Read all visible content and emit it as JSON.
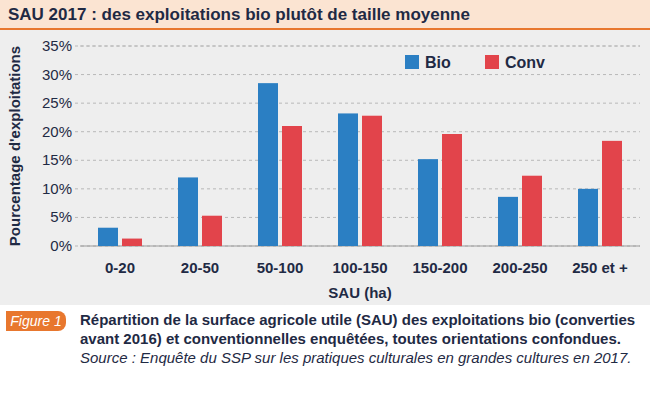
{
  "chart_data": {
    "type": "bar",
    "title": "SAU 2017 : des exploitations bio plutôt de taille moyenne",
    "x_label": "SAU (ha)",
    "y_label": "Pourcentage d'exploitations",
    "categories": [
      "0-20",
      "20-50",
      "50-100",
      "100-150",
      "150-200",
      "200-250",
      "250 et +"
    ],
    "series": [
      {
        "name": "Bio",
        "color": "#2b7fc3",
        "values": [
          3.2,
          12,
          28.5,
          23.2,
          15.2,
          8.6,
          10
        ]
      },
      {
        "name": "Conv",
        "color": "#e2444b",
        "values": [
          1.3,
          5.3,
          21,
          22.8,
          19.6,
          12.3,
          18.4
        ]
      }
    ],
    "ylim": [
      0,
      35
    ],
    "yticks": [
      {
        "value": 0,
        "label": "0%"
      },
      {
        "value": 5,
        "label": "5%"
      },
      {
        "value": 10,
        "label": "10%"
      },
      {
        "value": 15,
        "label": "15%"
      },
      {
        "value": 20,
        "label": "20%"
      },
      {
        "value": 25,
        "label": "25%"
      },
      {
        "value": 30,
        "label": "30%"
      },
      {
        "value": 35,
        "label": "35%"
      }
    ],
    "grid": true,
    "legend": "top-right",
    "figure_label": "Figure 1",
    "caption": "Répartition de la surface agricole utile (SAU) des exploitations bio (converties avant 2016) et conventionnelles enquêtées, toutes orientations confondues.",
    "source": "Source : Enquête du SSP sur les pratiques culturales en grandes cultures en 2017."
  }
}
